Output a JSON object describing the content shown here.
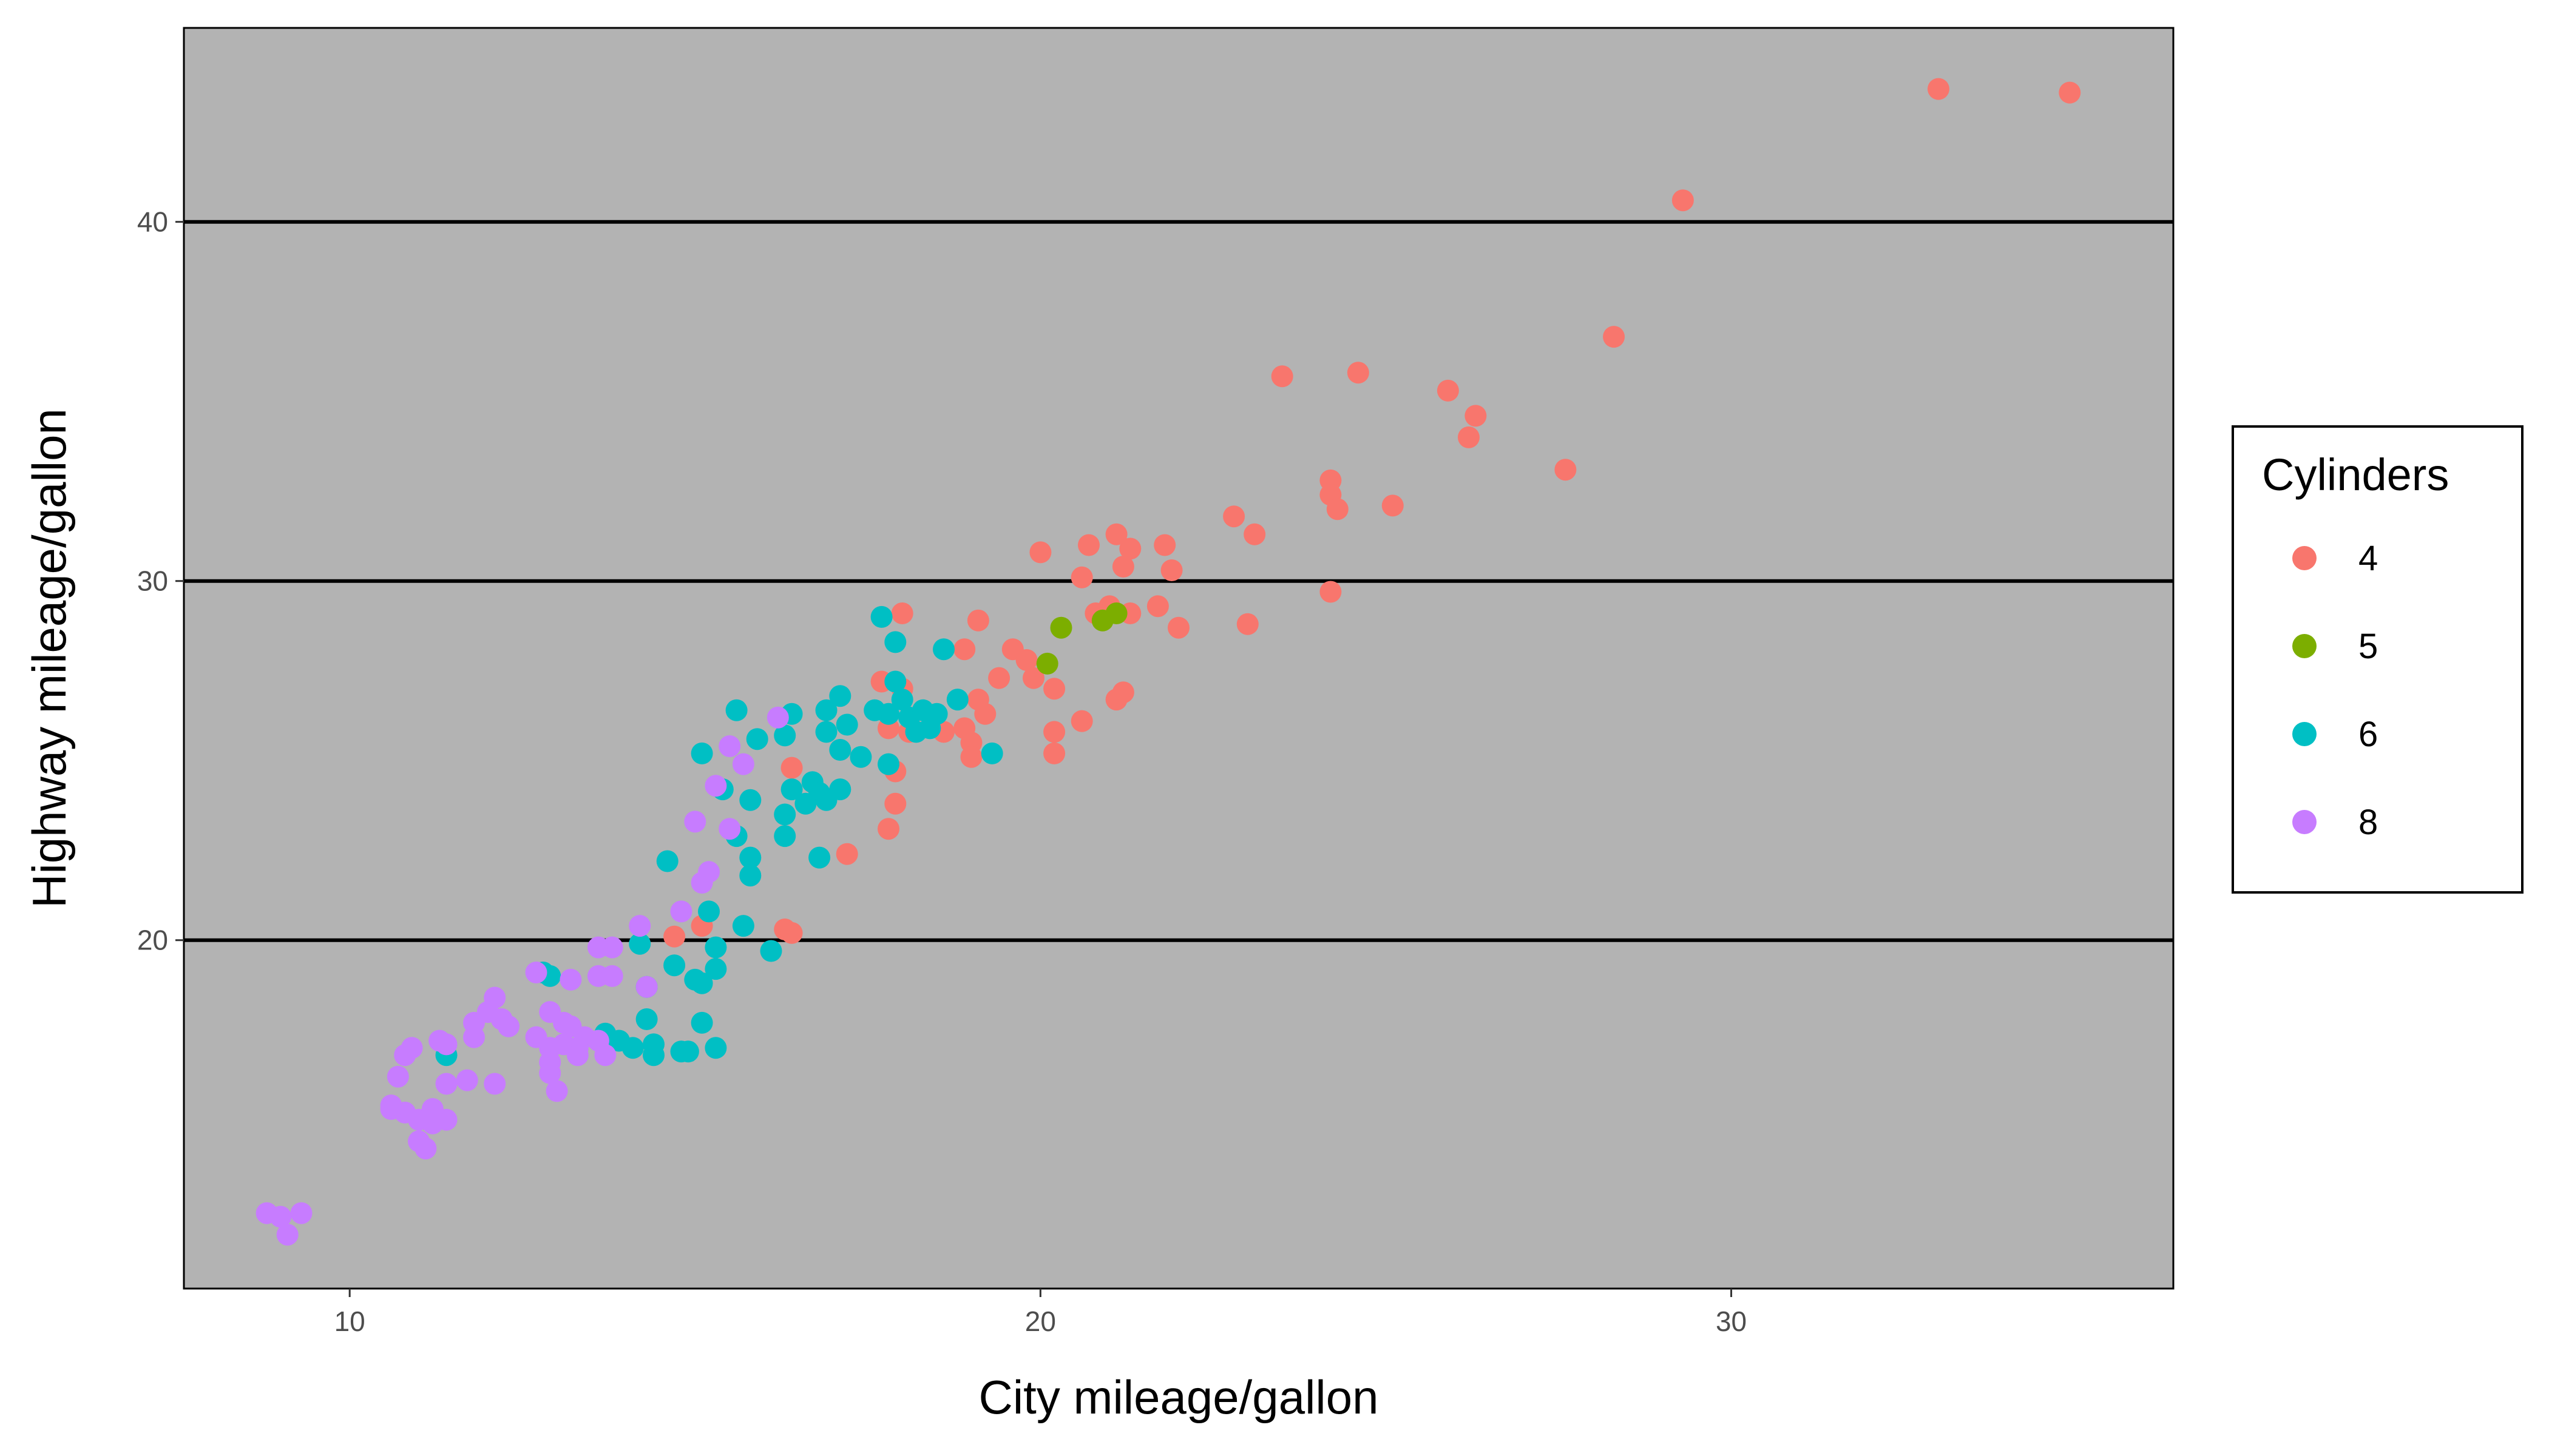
{
  "chart_data": {
    "type": "scatter",
    "title": "",
    "xlabel": "City mileage/gallon",
    "ylabel": "Highway mileage/gallon",
    "xlim": [
      7.6,
      36.4
    ],
    "ylim": [
      10.3,
      45.4
    ],
    "x_ticks": [
      10,
      20,
      30
    ],
    "y_ticks": [
      20,
      30,
      40
    ],
    "grid": {
      "major_y": true,
      "major_x": false
    },
    "panel_background": "#b3b3b3",
    "legend": {
      "title": "Cylinders",
      "placement": "right"
    },
    "series": [
      {
        "name": "4",
        "color": "#F8766D",
        "points": [
          [
            33.0,
            43.7
          ],
          [
            34.9,
            43.6
          ],
          [
            29.3,
            40.6
          ],
          [
            28.3,
            36.8
          ],
          [
            27.6,
            33.1
          ],
          [
            23.5,
            35.7
          ],
          [
            24.6,
            35.8
          ],
          [
            25.9,
            35.3
          ],
          [
            26.3,
            34.6
          ],
          [
            26.2,
            34.0
          ],
          [
            24.2,
            32.8
          ],
          [
            24.2,
            32.4
          ],
          [
            24.3,
            32.0
          ],
          [
            25.1,
            32.1
          ],
          [
            24.2,
            29.7
          ],
          [
            22.8,
            31.8
          ],
          [
            23.1,
            31.3
          ],
          [
            21.8,
            31.0
          ],
          [
            21.1,
            31.3
          ],
          [
            20.7,
            31.0
          ],
          [
            21.3,
            30.9
          ],
          [
            20.0,
            30.8
          ],
          [
            21.9,
            30.3
          ],
          [
            21.2,
            30.4
          ],
          [
            20.6,
            30.1
          ],
          [
            21.7,
            29.3
          ],
          [
            21.0,
            29.3
          ],
          [
            20.8,
            29.1
          ],
          [
            21.3,
            29.1
          ],
          [
            22.0,
            28.7
          ],
          [
            23.0,
            28.8
          ],
          [
            19.1,
            28.9
          ],
          [
            18.0,
            29.1
          ],
          [
            19.6,
            28.1
          ],
          [
            19.8,
            27.8
          ],
          [
            18.9,
            28.1
          ],
          [
            19.4,
            27.3
          ],
          [
            19.9,
            27.3
          ],
          [
            20.2,
            27.0
          ],
          [
            21.2,
            26.9
          ],
          [
            21.1,
            26.7
          ],
          [
            19.1,
            26.7
          ],
          [
            19.2,
            26.3
          ],
          [
            17.7,
            27.2
          ],
          [
            18.0,
            27.0
          ],
          [
            17.8,
            25.9
          ],
          [
            18.1,
            25.8
          ],
          [
            18.6,
            25.8
          ],
          [
            18.9,
            25.9
          ],
          [
            19.0,
            25.5
          ],
          [
            19.0,
            25.1
          ],
          [
            20.2,
            25.8
          ],
          [
            20.2,
            25.2
          ],
          [
            20.6,
            26.1
          ],
          [
            17.9,
            24.7
          ],
          [
            16.4,
            24.8
          ],
          [
            17.9,
            23.8
          ],
          [
            17.8,
            23.1
          ],
          [
            17.2,
            22.4
          ],
          [
            15.1,
            20.4
          ],
          [
            14.7,
            20.1
          ],
          [
            16.3,
            20.3
          ],
          [
            16.4,
            20.2
          ]
        ]
      },
      {
        "name": "5",
        "color": "#7CAE00",
        "points": [
          [
            20.3,
            28.7
          ],
          [
            20.1,
            27.7
          ],
          [
            20.9,
            28.9
          ],
          [
            21.1,
            29.1
          ]
        ]
      },
      {
        "name": "6",
        "color": "#00BFC4",
        "points": [
          [
            17.7,
            29.0
          ],
          [
            17.9,
            28.3
          ],
          [
            18.6,
            28.1
          ],
          [
            17.9,
            27.2
          ],
          [
            18.0,
            26.7
          ],
          [
            17.6,
            26.4
          ],
          [
            18.1,
            26.2
          ],
          [
            18.3,
            26.4
          ],
          [
            18.5,
            26.3
          ],
          [
            18.2,
            25.8
          ],
          [
            18.4,
            25.9
          ],
          [
            17.8,
            26.3
          ],
          [
            18.8,
            26.7
          ],
          [
            17.1,
            26.8
          ],
          [
            17.2,
            26.0
          ],
          [
            16.9,
            26.4
          ],
          [
            16.9,
            25.8
          ],
          [
            17.1,
            25.3
          ],
          [
            17.4,
            25.1
          ],
          [
            17.8,
            24.9
          ],
          [
            19.3,
            25.2
          ],
          [
            15.6,
            26.4
          ],
          [
            15.9,
            25.6
          ],
          [
            16.4,
            26.3
          ],
          [
            16.3,
            25.7
          ],
          [
            15.1,
            25.2
          ],
          [
            15.4,
            24.2
          ],
          [
            15.8,
            23.9
          ],
          [
            16.4,
            24.2
          ],
          [
            16.7,
            24.4
          ],
          [
            16.8,
            24.1
          ],
          [
            17.1,
            24.2
          ],
          [
            16.6,
            23.8
          ],
          [
            16.9,
            23.9
          ],
          [
            16.3,
            23.5
          ],
          [
            15.6,
            22.9
          ],
          [
            16.3,
            22.9
          ],
          [
            15.8,
            22.3
          ],
          [
            16.8,
            22.3
          ],
          [
            14.6,
            22.2
          ],
          [
            15.8,
            21.8
          ],
          [
            15.2,
            20.8
          ],
          [
            15.7,
            20.4
          ],
          [
            14.2,
            19.9
          ],
          [
            14.7,
            19.3
          ],
          [
            15.3,
            19.8
          ],
          [
            16.1,
            19.7
          ],
          [
            15.0,
            18.9
          ],
          [
            15.3,
            19.2
          ],
          [
            12.9,
            19.0
          ],
          [
            12.8,
            19.1
          ],
          [
            14.3,
            18.7
          ],
          [
            14.3,
            17.8
          ],
          [
            15.1,
            17.7
          ],
          [
            13.7,
            17.4
          ],
          [
            13.9,
            17.2
          ],
          [
            14.4,
            17.1
          ],
          [
            14.1,
            17.0
          ],
          [
            14.8,
            16.9
          ],
          [
            14.9,
            16.9
          ],
          [
            15.3,
            17.0
          ],
          [
            14.4,
            16.8
          ],
          [
            11.4,
            16.8
          ],
          [
            15.1,
            18.8
          ]
        ]
      },
      {
        "name": "8",
        "color": "#C77CFF",
        "points": [
          [
            16.2,
            26.2
          ],
          [
            15.5,
            25.4
          ],
          [
            15.7,
            24.9
          ],
          [
            15.3,
            24.3
          ],
          [
            15.0,
            23.3
          ],
          [
            15.5,
            23.1
          ],
          [
            15.2,
            21.9
          ],
          [
            15.1,
            21.6
          ],
          [
            14.8,
            20.8
          ],
          [
            14.2,
            20.4
          ],
          [
            13.6,
            19.8
          ],
          [
            13.8,
            19.8
          ],
          [
            13.6,
            19.0
          ],
          [
            13.8,
            19.0
          ],
          [
            13.2,
            18.9
          ],
          [
            12.7,
            19.1
          ],
          [
            14.3,
            18.7
          ],
          [
            12.1,
            18.4
          ],
          [
            12.2,
            17.8
          ],
          [
            12.0,
            18.0
          ],
          [
            11.8,
            17.7
          ],
          [
            12.3,
            17.6
          ],
          [
            12.9,
            18.0
          ],
          [
            13.1,
            17.7
          ],
          [
            13.2,
            17.6
          ],
          [
            13.4,
            17.3
          ],
          [
            13.1,
            17.1
          ],
          [
            12.9,
            17.0
          ],
          [
            12.7,
            17.3
          ],
          [
            13.3,
            17.0
          ],
          [
            13.6,
            17.2
          ],
          [
            11.8,
            17.3
          ],
          [
            11.3,
            17.2
          ],
          [
            11.4,
            17.1
          ],
          [
            12.9,
            16.6
          ],
          [
            13.3,
            16.8
          ],
          [
            13.7,
            16.8
          ],
          [
            10.9,
            17.0
          ],
          [
            10.8,
            16.8
          ],
          [
            10.7,
            16.2
          ],
          [
            11.4,
            16.0
          ],
          [
            11.7,
            16.1
          ],
          [
            12.1,
            16.0
          ],
          [
            12.9,
            16.3
          ],
          [
            13.0,
            15.8
          ],
          [
            10.6,
            15.4
          ],
          [
            10.8,
            15.2
          ],
          [
            11.0,
            15.0
          ],
          [
            11.2,
            15.3
          ],
          [
            11.2,
            14.9
          ],
          [
            11.4,
            15.0
          ],
          [
            11.0,
            14.4
          ],
          [
            11.1,
            14.2
          ],
          [
            10.6,
            15.3
          ],
          [
            8.8,
            12.4
          ],
          [
            9.0,
            12.3
          ],
          [
            9.3,
            12.4
          ],
          [
            9.1,
            11.8
          ]
        ]
      }
    ]
  }
}
